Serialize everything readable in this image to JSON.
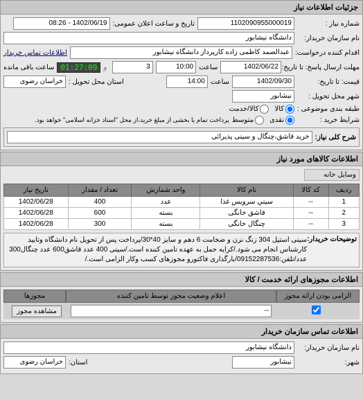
{
  "panels": {
    "main_title": "جزئیات اطلاعات نیاز",
    "items_title": "اطلاعات کالاهای مورد نیاز",
    "service_permits_title": "اطلاعات مجوزهای ارائه خدمت / کالا",
    "org_contact_title": "اطلاعات تماس سازمان خریدار"
  },
  "labels": {
    "req_no": "شماره نیاز :",
    "announce_date": "تاریخ و ساعت اعلان عمومی:",
    "buyer_org": "نام سازمان خریدار:",
    "requester": "اقدام کننده درخواست:",
    "buyer_contact_link": "اطلاعات تماس خریدار",
    "deadline": "مهلت ارسال پاسخ: تا تاریخ:",
    "time": "ساعت",
    "remain": "ساعت باقی مانده",
    "price_valid": "قیمت: تا تاریخ:",
    "province": "استان محل تحویل :",
    "city": "شهر محل تحویل :",
    "pkg": "طبقه بندی موضوعی :",
    "goods": "کالا",
    "service_goods": "کالا/خدمت",
    "purchase_cond": "شرایط خرید :",
    "cash": "نقدی",
    "med": "متوسط",
    "note_prefix": "پرداخت تمام یا بخشی از مبلغ خرید،از محل \"اسناد خزانه اسلامی\" خواهد بود.",
    "need_desc": "شرح کلی نیاز:",
    "household": "وسایل خانه",
    "tab_items": "توضیحات خریدار:",
    "permit_required": "الزامی بودن ارائه مجوز",
    "permit_status": "اعلام وضعیت مجوز توسط تامین کننده",
    "permits": "مجوزها",
    "view_permit": "مشاهده مجوز",
    "org_name_lbl": "نام سازمان خریدار:",
    "city_lbl": "شهر:",
    "province_lbl": "استان:"
  },
  "values": {
    "req_no": "1102090955000019",
    "announce_date": "1402/06/19 - 08:26",
    "buyer_org": "دانشگاه نیشابور",
    "requester": "عبدالصمد کاظمی زاده کارپرداز دانشگاه نیشابور",
    "deadline_date": "1402/06/22",
    "deadline_time": "10:00",
    "remain_num": "3",
    "timer": "01:27:09",
    "price_date": "1402/09/30",
    "price_time": "14:00",
    "province": "خراسان رضوی",
    "city": "نیشابور",
    "need_desc": "خرید قاشق،چنگال و سینی پذیرائی",
    "desc_text": "سینی استیل 304 زنگ نزن و ضخامت 6 دهم و سایز 40*30/پرداخت پس از تحویل نام دانشگاه وتایید کارشناس انجام می شود./کرایه حمل به عهده تامین کننده است./سینی 400 عدد قاشق600 عدد چنگال300 عدد/تلفن:09152287536/بارگذاری فاکتورو مجوزهای کسب وکار الزامی است./",
    "org_name": "دانشگاه نیشابور",
    "org_city": "نیشابور",
    "org_province": "خراسان رضوی",
    "permit_status_val": "--"
  },
  "items_table": {
    "headers": [
      "ردیف",
      "کد کالا",
      "نام کالا",
      "واحد شمارش",
      "تعداد / مقدار",
      "تاریخ نیاز"
    ],
    "rows": [
      [
        "1",
        "--",
        "سیني سرویس غذا",
        "عدد",
        "400",
        "1402/06/28"
      ],
      [
        "2",
        "--",
        "قاشق خانگی",
        "بسته",
        "600",
        "1402/06/28"
      ],
      [
        "3",
        "--",
        "چنگال خانگی",
        "بسته",
        "300",
        "1402/06/28"
      ]
    ]
  }
}
